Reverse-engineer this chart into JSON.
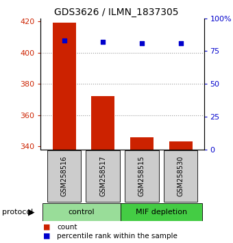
{
  "title": "GDS3626 / ILMN_1837305",
  "samples": [
    "GSM258516",
    "GSM258517",
    "GSM258515",
    "GSM258530"
  ],
  "bar_values": [
    419,
    372,
    346,
    343
  ],
  "percentile_values": [
    83,
    82,
    81,
    81
  ],
  "bar_bottom": 338,
  "ylim_left": [
    338,
    422
  ],
  "ylim_right": [
    0,
    100
  ],
  "yticks_left": [
    340,
    360,
    380,
    400,
    420
  ],
  "yticks_right": [
    0,
    25,
    50,
    75,
    100
  ],
  "yticklabels_right": [
    "0",
    "25",
    "50",
    "75",
    "100%"
  ],
  "bar_color": "#cc2200",
  "dot_color": "#0000cc",
  "groups": [
    {
      "label": "control",
      "color": "#99dd99"
    },
    {
      "label": "MIF depletion",
      "color": "#44cc44"
    }
  ],
  "xlabel_color": "#cc2200",
  "ylabel_right_color": "#0000cc",
  "grid_color": "#999999",
  "tick_label_area_bg": "#cccccc",
  "protocol_label": "protocol",
  "legend_count_label": "count",
  "legend_pct_label": "percentile rank within the sample"
}
